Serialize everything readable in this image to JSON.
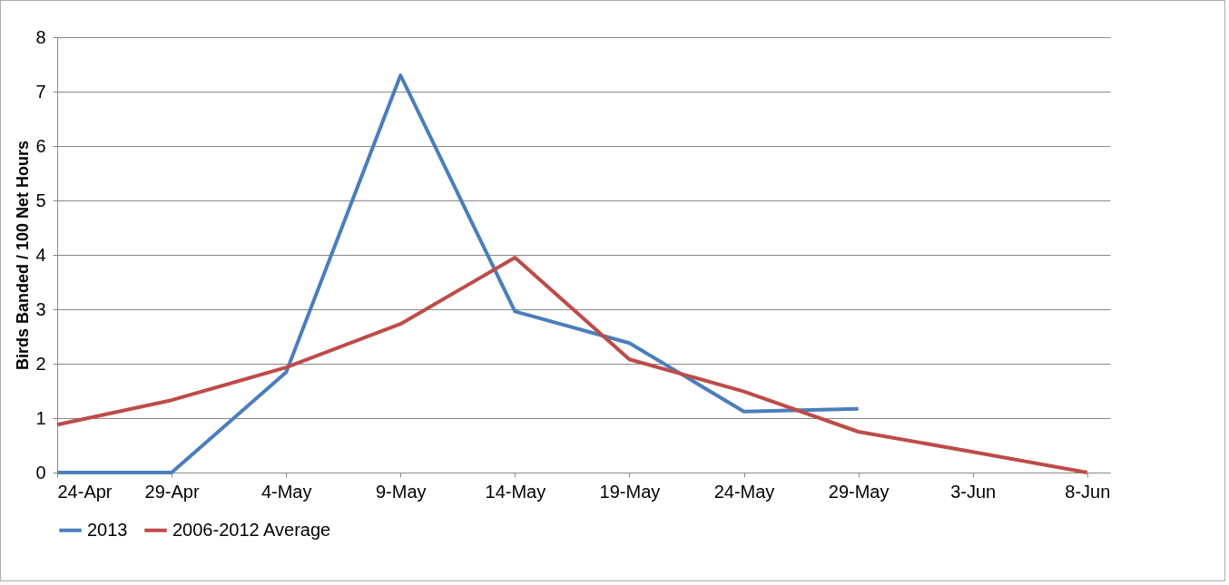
{
  "chart_data": {
    "type": "line",
    "ylabel": "Birds Banded / 100 Net Hours",
    "x": [
      "--04-24",
      "--04-29",
      "--05-04",
      "--05-09",
      "--05-14",
      "--05-19",
      "--05-24",
      "--05-29",
      "--06-03",
      "--06-08"
    ],
    "series": [
      {
        "name": "2013",
        "color": "#4a7ebb",
        "values": [
          0,
          0,
          1.84,
          7.3,
          2.96,
          2.38,
          1.12,
          1.17,
          null,
          null
        ]
      },
      {
        "name": "2006-2012 Average",
        "color": "#be4b48",
        "values": [
          0.88,
          1.33,
          1.93,
          2.73,
          3.95,
          2.08,
          1.49,
          0.75,
          0.38,
          0
        ]
      }
    ],
    "xlim": [
      "--04-24",
      "--06-09"
    ],
    "xticks": [
      {
        "value": "--04-24",
        "label": "24-Apr"
      },
      {
        "value": "--04-29",
        "label": "29-Apr"
      },
      {
        "value": "--05-04",
        "label": "4-May"
      },
      {
        "value": "--05-09",
        "label": "9-May"
      },
      {
        "value": "--05-14",
        "label": "14-May"
      },
      {
        "value": "--05-19",
        "label": "19-May"
      },
      {
        "value": "--05-24",
        "label": "24-May"
      },
      {
        "value": "--05-29",
        "label": "29-May"
      },
      {
        "value": "--06-03",
        "label": "3-Jun"
      },
      {
        "value": "--06-08",
        "label": "8-Jun"
      }
    ],
    "ylim": [
      0,
      8
    ],
    "yticks": [
      0,
      1,
      2,
      3,
      4,
      5,
      6,
      7,
      8
    ],
    "grid": "y",
    "legend": "bottom",
    "marker": "none",
    "line_style": "solid"
  }
}
